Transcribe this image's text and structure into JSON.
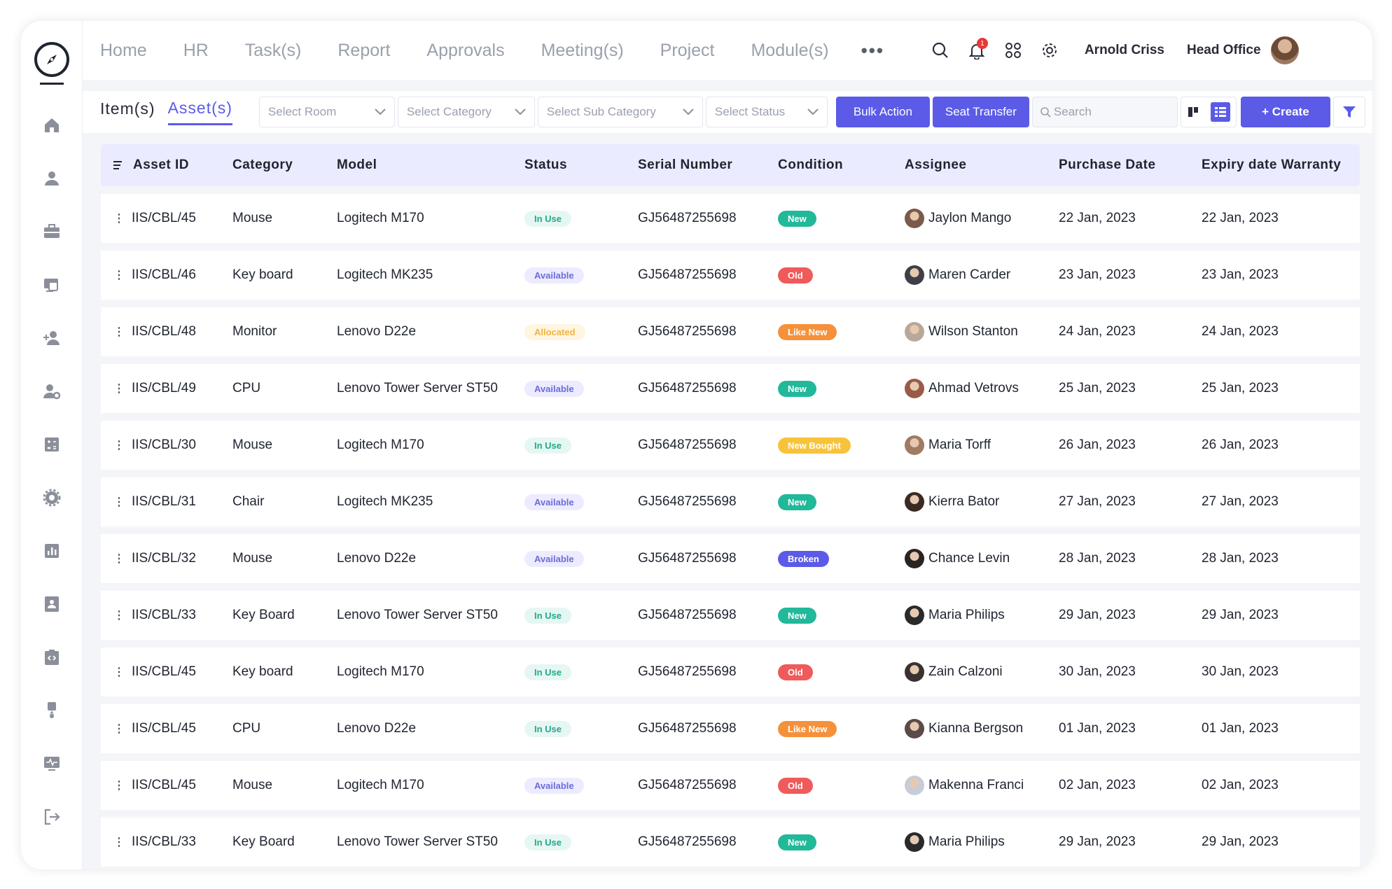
{
  "nav": {
    "items": [
      "Home",
      "HR",
      "Task(s)",
      "Report",
      "Approvals",
      "Meeting(s)",
      "Project",
      "Module(s)"
    ],
    "more": "•••",
    "notification_count": "1",
    "user_name": "Arnold Criss",
    "office": "Head Office"
  },
  "sidebar": {
    "icons": [
      "home-icon",
      "user-icon",
      "briefcase-icon",
      "monitor-icon",
      "add-user-icon",
      "user-settings-icon",
      "calculator-icon",
      "settings-icon",
      "chart-icon",
      "contact-card-icon",
      "code-clipboard-icon",
      "award-icon",
      "activity-monitor-icon",
      "logout-icon"
    ]
  },
  "toolbar": {
    "tab_items": "Item(s)",
    "tab_assets": "Asset(s)",
    "select_room": "Select Room",
    "select_category": "Select Category",
    "select_sub_category": "Select Sub Category",
    "select_status": "Select Status",
    "bulk_action": "Bulk Action",
    "seat_transfer": "Seat Transfer",
    "search_placeholder": "Search",
    "create": "+ Create"
  },
  "table": {
    "headers": [
      "Asset ID",
      "Category",
      "Model",
      "Status",
      "Serial Number",
      "Condition",
      "Assignee",
      "Purchase Date",
      "Expiry date Warranty"
    ],
    "rows": [
      [
        "IIS/CBL/45",
        "Mouse",
        "Logitech M170",
        "In Use",
        "GJ56487255698",
        "New",
        "Jaylon Mango",
        "22 Jan, 2023",
        "22 Jan, 2023"
      ],
      [
        "IIS/CBL/46",
        "Key board",
        "Logitech MK235",
        "Available",
        "GJ56487255698",
        "Old",
        "Maren Carder",
        "23 Jan, 2023",
        "23 Jan, 2023"
      ],
      [
        "IIS/CBL/48",
        "Monitor",
        "Lenovo D22e",
        "Allocated",
        "GJ56487255698",
        "Like New",
        "Wilson Stanton",
        "24 Jan, 2023",
        "24 Jan, 2023"
      ],
      [
        "IIS/CBL/49",
        "CPU",
        "Lenovo Tower Server ST50",
        "Available",
        "GJ56487255698",
        "New",
        "Ahmad Vetrovs",
        "25 Jan, 2023",
        "25 Jan, 2023"
      ],
      [
        "IIS/CBL/30",
        "Mouse",
        "Logitech M170",
        "In Use",
        "GJ56487255698",
        "New Bought",
        "Maria Torff",
        "26 Jan, 2023",
        "26 Jan, 2023"
      ],
      [
        "IIS/CBL/31",
        "Chair",
        "Logitech MK235",
        "Available",
        "GJ56487255698",
        "New",
        "Kierra Bator",
        "27 Jan, 2023",
        "27 Jan, 2023"
      ],
      [
        "IIS/CBL/32",
        "Mouse",
        "Lenovo D22e",
        "Available",
        "GJ56487255698",
        "Broken",
        "Chance Levin",
        "28 Jan, 2023",
        "28 Jan, 2023"
      ],
      [
        "IIS/CBL/33",
        "Key Board",
        "Lenovo Tower Server ST50",
        "In Use",
        "GJ56487255698",
        "New",
        "Maria Philips",
        "29 Jan, 2023",
        "29 Jan, 2023"
      ],
      [
        "IIS/CBL/45",
        "Key board",
        "Logitech M170",
        "In Use",
        "GJ56487255698",
        "Old",
        "Zain Calzoni",
        "30 Jan, 2023",
        "30 Jan, 2023"
      ],
      [
        "IIS/CBL/45",
        "CPU",
        "Lenovo D22e",
        "In Use",
        "GJ56487255698",
        "Like New",
        "Kianna Bergson",
        "01 Jan, 2023",
        "01 Jan, 2023"
      ],
      [
        "IIS/CBL/45",
        "Mouse",
        "Logitech M170",
        "Available",
        "GJ56487255698",
        "Old",
        "Makenna Franci",
        "02 Jan, 2023",
        "02 Jan, 2023"
      ],
      [
        "IIS/CBL/33",
        "Key Board",
        "Lenovo Tower Server ST50",
        "In Use",
        "GJ56487255698",
        "New",
        "Maria Philips",
        "29 Jan, 2023",
        "29 Jan, 2023"
      ]
    ]
  },
  "colors": {
    "accent": "#5b5be8",
    "status": {
      "In Use": {
        "bg": "#e6f7f3",
        "fg": "#22a88a"
      },
      "Available": {
        "bg": "#ecebff",
        "fg": "#6c6cd8"
      },
      "Allocated": {
        "bg": "#fff5e0",
        "fg": "#f0b440"
      }
    },
    "condition": {
      "New": "#22b89a",
      "Old": "#ef5a5a",
      "Like New": "#f5913a",
      "New Bought": "#f7c33a",
      "Broken": "#5b5be8"
    }
  }
}
